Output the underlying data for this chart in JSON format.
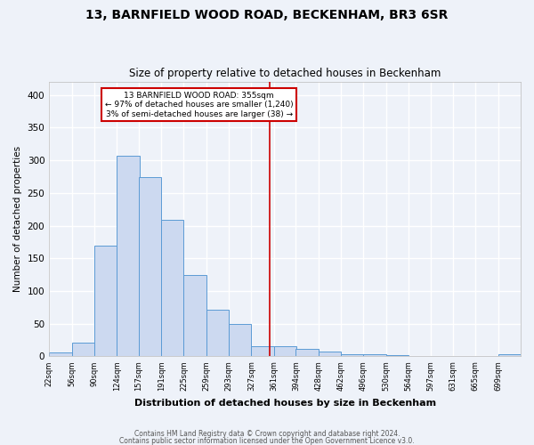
{
  "title": "13, BARNFIELD WOOD ROAD, BECKENHAM, BR3 6SR",
  "subtitle": "Size of property relative to detached houses in Beckenham",
  "xlabel": "Distribution of detached houses by size in Beckenham",
  "ylabel": "Number of detached properties",
  "footnote1": "Contains HM Land Registry data © Crown copyright and database right 2024.",
  "footnote2": "Contains public sector information licensed under the Open Government Licence v3.0.",
  "bar_labels": [
    "22sqm",
    "56sqm",
    "90sqm",
    "124sqm",
    "157sqm",
    "191sqm",
    "225sqm",
    "259sqm",
    "293sqm",
    "327sqm",
    "361sqm",
    "394sqm",
    "428sqm",
    "462sqm",
    "496sqm",
    "530sqm",
    "564sqm",
    "597sqm",
    "631sqm",
    "665sqm",
    "699sqm"
  ],
  "bar_heights": [
    6,
    21,
    170,
    307,
    274,
    209,
    124,
    72,
    49,
    15,
    15,
    11,
    7,
    3,
    3,
    2,
    0,
    1,
    0,
    0,
    3
  ],
  "bar_color": "#ccd9f0",
  "bar_edge_color": "#5b9bd5",
  "background_color": "#eef2f9",
  "grid_color": "#ffffff",
  "vline_x": 355,
  "vline_color": "#cc0000",
  "annotation_text": "13 BARNFIELD WOOD ROAD: 355sqm\n← 97% of detached houses are smaller (1,240)\n3% of semi-detached houses are larger (38) →",
  "annotation_box_color": "#ffffff",
  "annotation_box_edge": "#cc0000",
  "ylim": [
    0,
    420
  ],
  "bin_width": 34
}
